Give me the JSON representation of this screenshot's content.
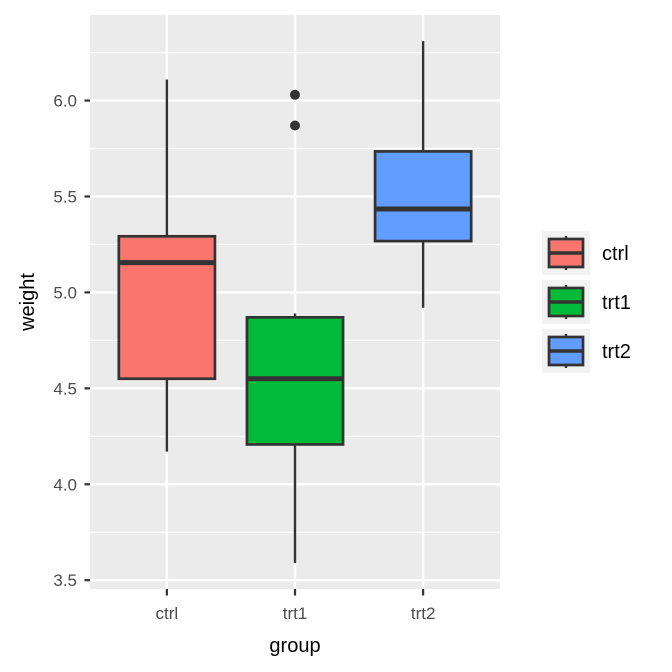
{
  "chart_data": {
    "type": "boxplot",
    "title": "",
    "xlabel": "group",
    "ylabel": "weight",
    "categories": [
      "ctrl",
      "trt1",
      "trt2"
    ],
    "series": [
      {
        "name": "ctrl",
        "fill": "#F8766D",
        "whisker_low": 4.17,
        "q1": 4.55,
        "median": 5.155,
        "q3": 5.2925,
        "whisker_high": 6.11,
        "outliers": []
      },
      {
        "name": "trt1",
        "fill": "#00BA38",
        "whisker_low": 3.59,
        "q1": 4.2075,
        "median": 4.55,
        "q3": 4.87,
        "whisker_high": 4.89,
        "outliers": [
          5.87,
          6.03
        ]
      },
      {
        "name": "trt2",
        "fill": "#619CFF",
        "whisker_low": 4.92,
        "q1": 5.2675,
        "median": 5.435,
        "q3": 5.735,
        "whisker_high": 6.31,
        "outliers": []
      }
    ],
    "y_axis": {
      "ticks": [
        3.5,
        4.0,
        4.5,
        5.0,
        5.5,
        6.0
      ],
      "tick_labels": [
        "3.5",
        "4.0",
        "4.5",
        "5.0",
        "5.5",
        "6.0"
      ],
      "limits": [
        3.454,
        6.446
      ],
      "minor_gridlines": [
        3.75,
        4.25,
        4.75,
        5.25,
        5.75,
        6.25
      ]
    },
    "legend": {
      "position": "right",
      "entries": [
        {
          "label": "ctrl",
          "fill": "#F8766D"
        },
        {
          "label": "trt1",
          "fill": "#00BA38"
        },
        {
          "label": "trt2",
          "fill": "#619CFF"
        }
      ]
    },
    "style": {
      "background": "#FFFFFF",
      "panel_bg": "#EBEBEB",
      "gridline": "#FFFFFF",
      "box_border": "#333333",
      "median_color": "#333333",
      "outlier_color": "#333333",
      "tick_mark_color": "#333333",
      "axis_text_color": "#4D4D4D",
      "title_color": "#000000",
      "legend_key_bg": "#F2F2F2"
    }
  }
}
